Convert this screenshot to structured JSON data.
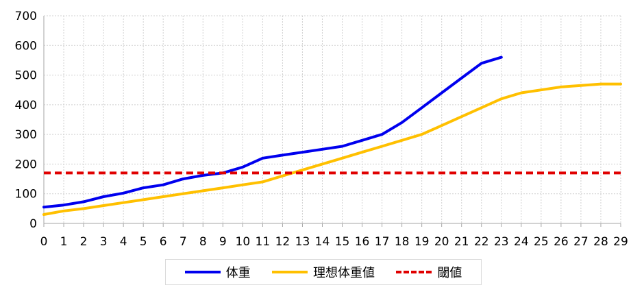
{
  "chart_data": {
    "type": "line",
    "title": "",
    "xlabel": "",
    "ylabel": "",
    "xlim": [
      0,
      29
    ],
    "ylim": [
      0,
      700
    ],
    "yticks": [
      0,
      100,
      200,
      300,
      400,
      500,
      600,
      700
    ],
    "xticks": [
      0,
      1,
      2,
      3,
      4,
      5,
      6,
      7,
      8,
      9,
      10,
      11,
      12,
      13,
      14,
      15,
      16,
      17,
      18,
      19,
      20,
      21,
      22,
      23,
      24,
      25,
      26,
      27,
      28,
      29
    ],
    "grid": true,
    "legend_position": "bottom",
    "series": [
      {
        "name": "体重",
        "color": "#0000ee",
        "dash": "solid",
        "x": [
          0,
          1,
          2,
          3,
          4,
          5,
          6,
          7,
          8,
          9,
          10,
          11,
          12,
          13,
          14,
          15,
          16,
          17,
          18,
          19,
          20,
          21,
          22,
          23
        ],
        "y": [
          55,
          62,
          73,
          90,
          102,
          120,
          130,
          150,
          162,
          170,
          190,
          220,
          230,
          240,
          250,
          260,
          280,
          300,
          340,
          390,
          440,
          490,
          540,
          560
        ]
      },
      {
        "name": "理想体重値",
        "color": "#ffc000",
        "dash": "solid",
        "x": [
          0,
          1,
          2,
          3,
          4,
          5,
          6,
          7,
          8,
          9,
          10,
          11,
          12,
          13,
          14,
          15,
          16,
          17,
          18,
          19,
          20,
          21,
          22,
          23,
          24,
          25,
          26,
          27,
          28,
          29
        ],
        "y": [
          30,
          42,
          50,
          60,
          70,
          80,
          90,
          100,
          110,
          120,
          130,
          140,
          160,
          180,
          200,
          220,
          240,
          260,
          280,
          300,
          330,
          360,
          390,
          420,
          440,
          450,
          460,
          465,
          470,
          470
        ]
      },
      {
        "name": "閾値",
        "color": "#e00000",
        "dash": "dashed",
        "x": [
          0,
          29
        ],
        "y": [
          170,
          170
        ]
      }
    ]
  }
}
